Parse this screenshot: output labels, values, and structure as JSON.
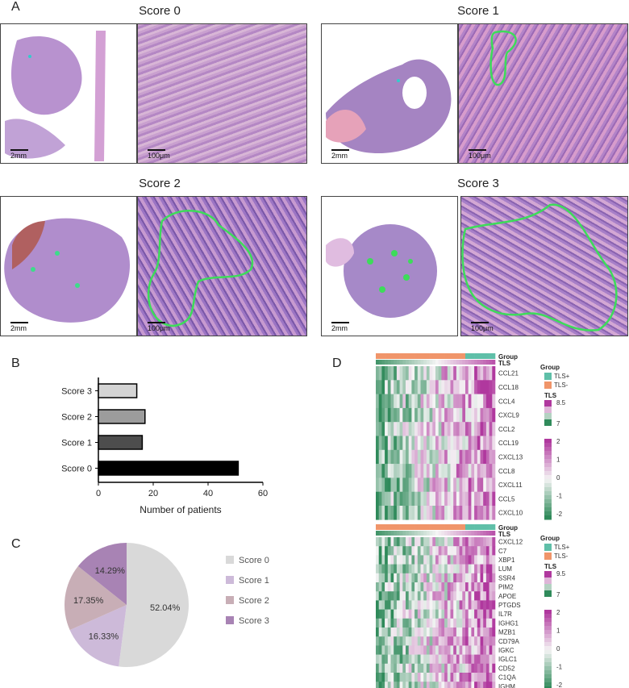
{
  "panels": {
    "A": {
      "letter": "A",
      "tiles": [
        {
          "title": "Score 0",
          "scale_overview": "2mm",
          "scale_detail": "100μm"
        },
        {
          "title": "Score 1",
          "scale_overview": "2mm",
          "scale_detail": "100μm"
        },
        {
          "title": "Score 2",
          "scale_overview": "2mm",
          "scale_detail": "100μm"
        },
        {
          "title": "Score 3",
          "scale_overview": "2mm",
          "scale_detail": "100μm"
        }
      ],
      "colors": {
        "tissue": "#b58ac9",
        "tissue_dark": "#7b5aa8",
        "tls_outline": "#3ddc5a",
        "blood": "#a04040"
      }
    },
    "B": {
      "letter": "B"
    },
    "C": {
      "letter": "C"
    },
    "D": {
      "letter": "D"
    }
  },
  "chart_data": [
    {
      "type": "bar",
      "orientation": "horizontal",
      "categories": [
        "Score 3",
        "Score 2",
        "Score 1",
        "Score 0"
      ],
      "values": [
        14,
        17,
        16,
        51
      ],
      "xlabel": "Number of patients",
      "xlim": [
        0,
        60
      ],
      "xticks": [
        "0",
        "20",
        "40",
        "60"
      ],
      "colors": [
        "#d4d4d4",
        "#9c9c9c",
        "#4d4d4d",
        "#000000"
      ]
    },
    {
      "type": "pie",
      "labels": [
        "Score 0",
        "Score 1",
        "Score 2",
        "Score 3"
      ],
      "values": [
        52.04,
        16.33,
        17.35,
        14.29
      ],
      "value_labels": [
        "52.04%",
        "16.33%",
        "17.35%",
        "14.29%"
      ],
      "colors": [
        "#d9d9d9",
        "#cdbad9",
        "#c8aeb6",
        "#a883b4"
      ],
      "legend": "right"
    },
    {
      "type": "heatmap",
      "genes": [
        "CCL21",
        "CCL18",
        "CCL4",
        "CXCL9",
        "CCL2",
        "CCL19",
        "CXCL13",
        "CCL8",
        "CXCL11",
        "CCL5",
        "CXCL10"
      ],
      "annotation_rows": [
        "Group",
        "TLS"
      ],
      "legend": {
        "group_title": "Group",
        "group_items": [
          "TLS+",
          "TLS-"
        ],
        "group_colors": [
          "#5fbfa8",
          "#f0956a"
        ],
        "tls_title": "TLS",
        "tls_ticks": [
          "8.5",
          "7"
        ],
        "value_ticks": [
          "2",
          "1",
          "0",
          "-1",
          "-2"
        ]
      },
      "low_color": "#2f8a5a",
      "mid_color": "#f5f5f5",
      "high_color": "#b0389e"
    },
    {
      "type": "heatmap",
      "genes": [
        "CXCL12",
        "C7",
        "XBP1",
        "LUM",
        "SSR4",
        "PIM2",
        "APOE",
        "PTGDS",
        "IL7R",
        "IGHG1",
        "MZB1",
        "CD79A",
        "IGKC",
        "IGLC1",
        "CD52",
        "C1QA",
        "IGHM"
      ],
      "annotation_rows": [
        "Group",
        "TLS"
      ],
      "legend": {
        "group_title": "Group",
        "group_items": [
          "TLS+",
          "TLS-"
        ],
        "group_colors": [
          "#5fbfa8",
          "#f0956a"
        ],
        "tls_title": "TLS",
        "tls_ticks": [
          "9.5",
          "7"
        ],
        "value_ticks": [
          "2",
          "1",
          "0",
          "-1",
          "-2"
        ]
      },
      "low_color": "#2f8a5a",
      "mid_color": "#f5f5f5",
      "high_color": "#b0389e"
    }
  ]
}
